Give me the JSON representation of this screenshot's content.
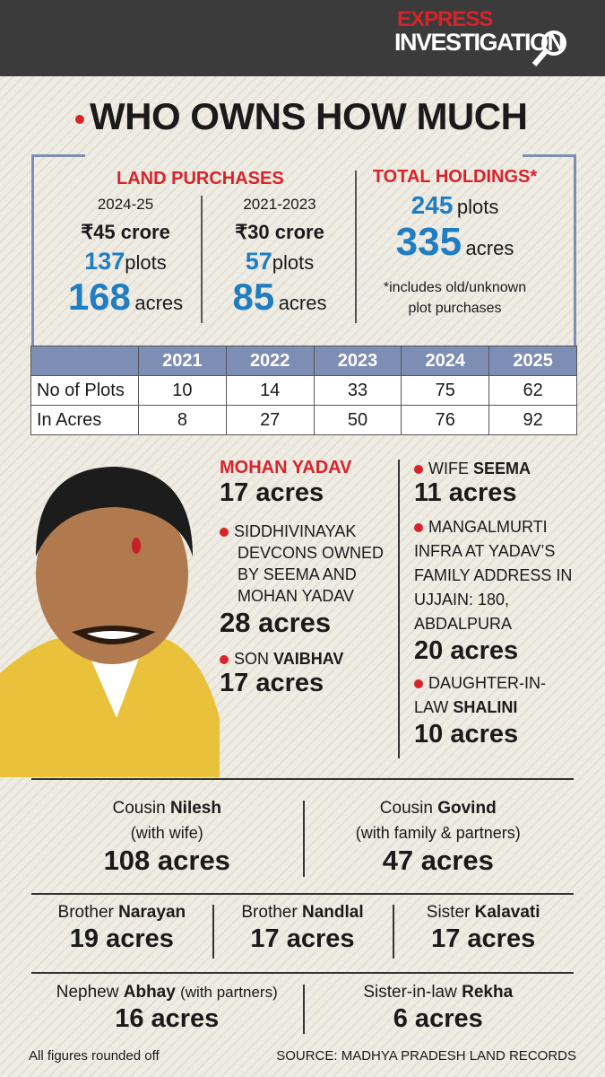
{
  "header": {
    "brand_top": "EXPRESS",
    "brand_bottom": "INVESTIGATION"
  },
  "title": "WHO OWNS HOW MUCH",
  "summary": {
    "land_purchases": {
      "heading": "LAND PURCHASES",
      "periods": [
        {
          "period": "2024-25",
          "amount": "₹45 crore",
          "plots": "137",
          "plots_unit": "plots",
          "acres": "168",
          "acres_unit": "acres"
        },
        {
          "period": "2021-2023",
          "amount": "₹30 crore",
          "plots": "57",
          "plots_unit": "plots",
          "acres": "85",
          "acres_unit": "acres"
        }
      ]
    },
    "total_holdings": {
      "heading": "TOTAL HOLDINGS*",
      "plots": "245",
      "plots_unit": "plots",
      "acres": "335",
      "acres_unit": "acres",
      "footnote": "*includes old/unknown plot purchases"
    }
  },
  "table": {
    "years": [
      "2021",
      "2022",
      "2023",
      "2024",
      "2025"
    ],
    "rows": [
      {
        "label": "No of Plots",
        "values": [
          10,
          14,
          33,
          75,
          62
        ]
      },
      {
        "label": "In Acres",
        "values": [
          8,
          27,
          50,
          76,
          92
        ]
      }
    ]
  },
  "family": {
    "main": {
      "name": "MOHAN YADAV",
      "amount": "17 acres"
    },
    "items": [
      {
        "label": "SIDDHIVINAYAK DEVCONS OWNED BY SEEMA AND MOHAN YADAV",
        "amount": "28 acres"
      },
      {
        "label": "SON",
        "name": "VAIBHAV",
        "amount": "17 acres"
      },
      {
        "label": "WIFE",
        "name": "SEEMA",
        "amount": "11 acres"
      },
      {
        "label": "MANGALMURTI INFRA AT YADAV’S FAMILY ADDRESS IN UJJAIN: 180, ABDALPURA",
        "amount": "20 acres"
      },
      {
        "label": "DAUGHTER-IN-LAW",
        "name": "SHALINI",
        "amount": "10 acres"
      }
    ]
  },
  "relatives": [
    [
      {
        "relation": "Cousin",
        "name": "Nilesh",
        "note": "(with wife)",
        "amount": "108 acres"
      },
      {
        "relation": "Cousin",
        "name": "Govind",
        "note": "(with family & partners)",
        "amount": "47 acres"
      }
    ],
    [
      {
        "relation": "Brother",
        "name": "Narayan",
        "amount": "19 acres"
      },
      {
        "relation": "Brother",
        "name": "Nandlal",
        "amount": "17 acres"
      },
      {
        "relation": "Sister",
        "name": "Kalavati",
        "amount": "17 acres"
      }
    ],
    [
      {
        "relation": "Nephew",
        "name": "Abhay",
        "inline_note": "(with partners)",
        "amount": "16 acres"
      },
      {
        "relation": "Sister-in-law",
        "name": "Rekha",
        "amount": "6 acres"
      }
    ]
  ],
  "footer": {
    "note": "All figures rounded off",
    "source": "SOURCE: MADHYA PRADESH LAND RECORDS"
  }
}
